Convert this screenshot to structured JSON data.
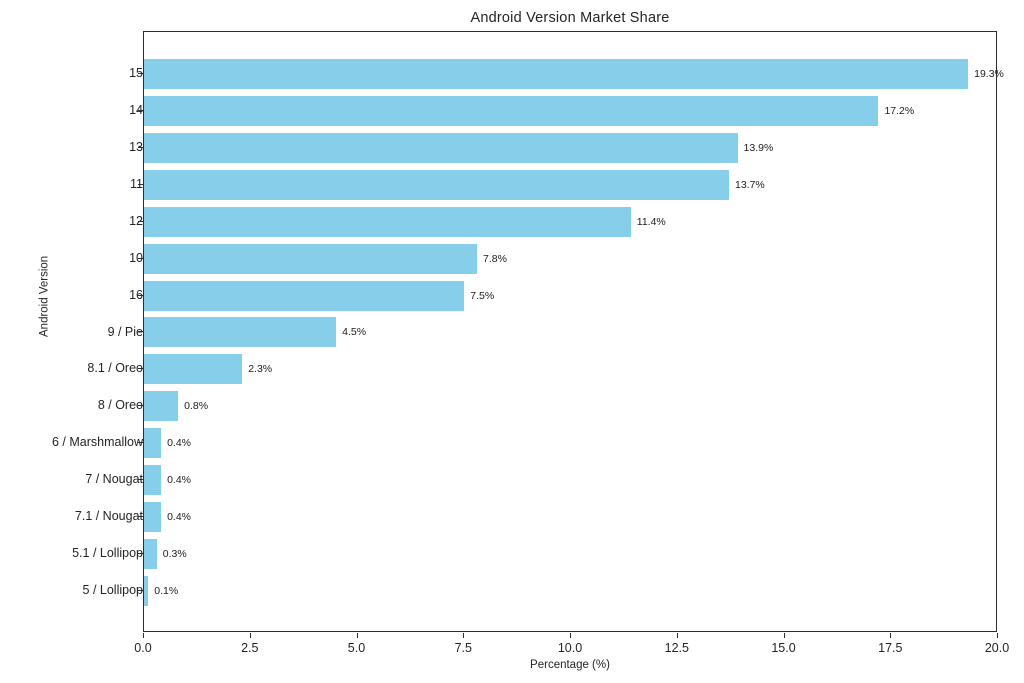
{
  "chart_data": {
    "type": "bar",
    "orientation": "horizontal",
    "title": "Android Version Market Share",
    "xlabel": "Percentage (%)",
    "ylabel": "Android Version",
    "categories": [
      "15",
      "14",
      "13",
      "11",
      "12",
      "10",
      "16",
      "9 / Pie",
      "8.1 / Oreo",
      "8 / Oreo",
      "6 / Marshmallow",
      "7 / Nougat",
      "7.1 / Nougat",
      "5.1 / Lollipop",
      "5 / Lollipop"
    ],
    "values": [
      19.3,
      17.2,
      13.9,
      13.7,
      11.4,
      7.8,
      7.5,
      4.5,
      2.3,
      0.8,
      0.4,
      0.4,
      0.4,
      0.3,
      0.1
    ],
    "value_labels": [
      "19.3%",
      "17.2%",
      "13.9%",
      "13.7%",
      "11.4%",
      "7.8%",
      "7.5%",
      "4.5%",
      "2.3%",
      "0.8%",
      "0.4%",
      "0.4%",
      "0.4%",
      "0.3%",
      "0.1%"
    ],
    "xlim": [
      0,
      20
    ],
    "xticks": [
      0.0,
      2.5,
      5.0,
      7.5,
      10.0,
      12.5,
      15.0,
      17.5,
      20.0
    ],
    "xtick_labels": [
      "0.0",
      "2.5",
      "5.0",
      "7.5",
      "10.0",
      "12.5",
      "15.0",
      "17.5",
      "20.0"
    ],
    "bar_color": "#87CEEB",
    "text_color": "#242424",
    "grid": false,
    "legend_position": "none"
  }
}
